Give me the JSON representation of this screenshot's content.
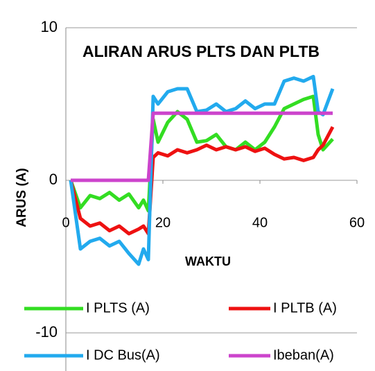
{
  "chart_data": {
    "type": "line",
    "title": "ALIRAN ARUS PLTS DAN PLTB",
    "x_label": "WAKTU",
    "y_label": "ARUS  (A)",
    "x": [
      1,
      3,
      5,
      7,
      9,
      11,
      13,
      15,
      16,
      17,
      18,
      19,
      21,
      23,
      25,
      27,
      29,
      31,
      33,
      35,
      37,
      39,
      41,
      43,
      45,
      47,
      49,
      51,
      52,
      53,
      55
    ],
    "series": [
      {
        "name": "I PLTS (A)",
        "color": "#33dd22",
        "values": [
          0,
          -1.8,
          -1,
          -1.2,
          -0.8,
          -1.3,
          -0.9,
          -1.8,
          -1.3,
          -2,
          4,
          2.5,
          3.8,
          4.5,
          4,
          2.5,
          2.6,
          3,
          2.2,
          2,
          2.5,
          2,
          2.5,
          3.5,
          4.7,
          5,
          5.3,
          5.5,
          3,
          2,
          2.7
        ]
      },
      {
        "name": "I PLTB (A)",
        "color": "#ee1111",
        "values": [
          0,
          -2.5,
          -3,
          -2.8,
          -3.3,
          -3,
          -3.5,
          -3.2,
          -3,
          -3.5,
          1.5,
          1.8,
          1.6,
          2,
          1.8,
          2,
          2.3,
          2,
          2.2,
          2,
          2.2,
          1.9,
          2.1,
          1.7,
          1.4,
          1.5,
          1.3,
          1.5,
          2,
          2.3,
          3.5
        ]
      },
      {
        "name": "I DC Bus(A)",
        "color": "#22aaee",
        "values": [
          0,
          -4.5,
          -4,
          -3.8,
          -4.3,
          -4,
          -4.8,
          -5.5,
          -4.5,
          -5.2,
          5.5,
          5,
          5.8,
          6,
          6,
          4.5,
          4.6,
          5,
          4.5,
          4.7,
          5.2,
          4.7,
          5,
          5,
          6.5,
          6.7,
          6.5,
          6.8,
          4.5,
          4.3,
          6
        ]
      },
      {
        "name": "Ibeban(A)",
        "color": "#cc44cc",
        "values": [
          0,
          0,
          0,
          0,
          0,
          0,
          0,
          0,
          0,
          0,
          4.4,
          4.4,
          4.4,
          4.4,
          4.4,
          4.4,
          4.4,
          4.4,
          4.4,
          4.4,
          4.4,
          4.4,
          4.4,
          4.4,
          4.4,
          4.4,
          4.4,
          4.4,
          4.4,
          4.4,
          4.4
        ]
      }
    ],
    "xlim": [
      0,
      60
    ],
    "xticks": [
      0,
      20,
      40,
      60
    ],
    "ylim": [
      -10,
      10
    ],
    "yticks": [
      -10,
      0,
      10
    ],
    "grid": true,
    "legend": "bottom"
  }
}
